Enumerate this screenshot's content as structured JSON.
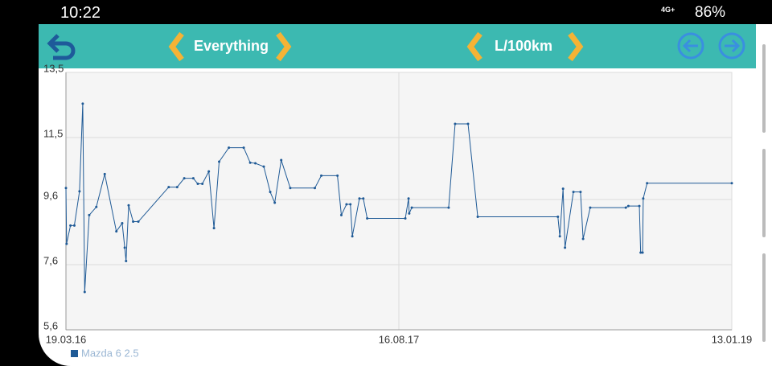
{
  "status": {
    "time": "10:22",
    "network": "4G+",
    "battery": "86%"
  },
  "toolbar": {
    "filter": "Everything",
    "unit": "L/100km"
  },
  "chart_data": {
    "type": "line",
    "x": [
      "2016-03-19",
      "2016-03-20",
      "2016-03-26",
      "2016-04-01",
      "2016-04-09",
      "2016-04-14",
      "2016-04-17",
      "2016-04-24",
      "2016-05-05",
      "2016-05-18",
      "2016-06-05",
      "2016-06-14",
      "2016-06-18",
      "2016-06-20",
      "2016-06-24",
      "2016-07-01",
      "2016-07-09",
      "2016-08-25",
      "2016-09-07",
      "2016-09-18",
      "2016-10-02",
      "2016-10-09",
      "2016-10-16",
      "2016-10-26",
      "2016-11-03",
      "2016-11-11",
      "2016-11-26",
      "2016-12-19",
      "2016-12-29",
      "2017-01-06",
      "2017-01-19",
      "2017-01-29",
      "2017-02-05",
      "2017-02-15",
      "2017-03-01",
      "2017-04-08",
      "2017-04-18",
      "2017-05-13",
      "2017-05-19",
      "2017-05-27",
      "2017-06-02",
      "2017-06-05",
      "2017-06-16",
      "2017-06-22",
      "2017-06-28",
      "2017-08-26",
      "2017-08-31",
      "2017-09-01",
      "2017-09-05",
      "2017-11-01",
      "2017-11-11",
      "2017-12-01",
      "2017-12-16",
      "2018-04-19",
      "2018-04-22",
      "2018-04-27",
      "2018-04-30",
      "2018-05-13",
      "2018-05-24",
      "2018-05-28",
      "2018-06-08",
      "2018-08-02",
      "2018-08-06",
      "2018-08-23",
      "2018-08-25",
      "2018-08-28",
      "2018-08-29",
      "2018-09-04",
      "2019-01-13"
    ],
    "series": [
      {
        "name": "Mazda 6 2.5",
        "color": "#1f5a96",
        "values": [
          9.95,
          8.24,
          8.8,
          8.8,
          9.85,
          12.54,
          6.76,
          9.12,
          9.37,
          10.38,
          8.62,
          8.87,
          8.12,
          7.71,
          9.42,
          8.92,
          8.92,
          9.98,
          9.98,
          10.25,
          10.25,
          10.08,
          10.08,
          10.46,
          8.72,
          10.76,
          11.19,
          11.19,
          10.73,
          10.71,
          10.61,
          9.83,
          9.5,
          10.81,
          9.95,
          9.95,
          10.33,
          10.33,
          9.12,
          9.45,
          9.45,
          8.47,
          9.63,
          9.63,
          9.02,
          9.02,
          9.63,
          9.17,
          9.35,
          9.35,
          11.92,
          11.92,
          9.07,
          9.07,
          8.47,
          9.93,
          8.12,
          9.83,
          9.83,
          8.39,
          9.35,
          9.35,
          9.4,
          9.4,
          7.97,
          7.97,
          9.63,
          10.1,
          10.1
        ]
      }
    ],
    "xlim": [
      "2016-03-19",
      "2019-01-13"
    ],
    "xticks": [
      {
        "value": "2016-03-19",
        "label": "19.03.16"
      },
      {
        "value": "2017-08-16",
        "label": "16.08.17"
      },
      {
        "value": "2019-01-13",
        "label": "13.01.19"
      }
    ],
    "ylim": [
      5.6,
      13.5
    ],
    "yticks": [
      {
        "value": 5.6,
        "label": "5,6"
      },
      {
        "value": 7.6,
        "label": "7,6"
      },
      {
        "value": 9.6,
        "label": "9,6"
      },
      {
        "value": 11.5,
        "label": "11,5"
      },
      {
        "value": 13.5,
        "label": "13,5"
      }
    ],
    "grid": true
  }
}
